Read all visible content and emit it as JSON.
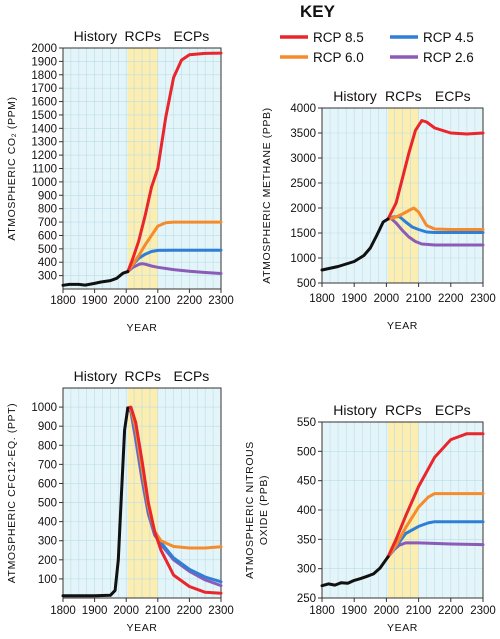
{
  "key": {
    "title": "KEY",
    "items": [
      {
        "label": "RCP 8.5",
        "color": "#e8262b"
      },
      {
        "label": "RCP 6.0",
        "color": "#f58b2a"
      },
      {
        "label": "RCP 4.5",
        "color": "#2f7fd6"
      },
      {
        "label": "RCP 2.6",
        "color": "#8b5bb8"
      }
    ]
  },
  "colors": {
    "history": "#111111",
    "panel_background": "#e4f5fa",
    "rcp_band": "#fbeeb0",
    "gridline": "#b9dde8"
  },
  "periods": [
    "History",
    "RCPs",
    "ECPs"
  ],
  "chart_data": [
    {
      "id": "co2",
      "type": "line",
      "ylabel": "ATMOSPHERIC CO₂ (PPM)",
      "xlabel": "YEAR",
      "xlim": [
        1800,
        2300
      ],
      "ylim": [
        200,
        2000
      ],
      "xticks": [
        1800,
        1900,
        2000,
        2100,
        2200,
        2300
      ],
      "yticks": [
        300,
        400,
        500,
        600,
        700,
        800,
        900,
        1000,
        1100,
        1200,
        1300,
        1400,
        1500,
        1600,
        1700,
        1800,
        1900,
        2000
      ],
      "rcp_period": [
        2005,
        2100
      ],
      "history": {
        "x": [
          1800,
          1820,
          1850,
          1870,
          1900,
          1920,
          1950,
          1970,
          1990,
          2005
        ],
        "y": [
          228,
          234,
          234,
          229,
          242,
          252,
          263,
          280,
          318,
          330
        ]
      },
      "series": [
        {
          "name": "RCP 8.5",
          "x": [
            2005,
            2020,
            2040,
            2060,
            2080,
            2100,
            2125,
            2150,
            2175,
            2200,
            2250,
            2300
          ],
          "y": [
            330,
            420,
            560,
            750,
            960,
            1100,
            1480,
            1780,
            1910,
            1950,
            1960,
            1962
          ]
        },
        {
          "name": "RCP 6.0",
          "x": [
            2005,
            2020,
            2040,
            2060,
            2080,
            2100,
            2125,
            2150,
            2200,
            2250,
            2300
          ],
          "y": [
            330,
            380,
            450,
            530,
            600,
            670,
            695,
            700,
            700,
            700,
            700
          ]
        },
        {
          "name": "RCP 4.5",
          "x": [
            2005,
            2020,
            2040,
            2060,
            2080,
            2100,
            2150,
            2200,
            2250,
            2300
          ],
          "y": [
            330,
            380,
            430,
            460,
            480,
            488,
            490,
            490,
            490,
            490
          ]
        },
        {
          "name": "RCP 2.6",
          "x": [
            2005,
            2020,
            2040,
            2050,
            2060,
            2080,
            2100,
            2150,
            2200,
            2250,
            2300
          ],
          "y": [
            330,
            360,
            384,
            389,
            385,
            372,
            362,
            345,
            333,
            323,
            316
          ]
        }
      ]
    },
    {
      "id": "methane",
      "type": "line",
      "ylabel": "ATMOSPHERIC METHANE (PPB)",
      "xlabel": "YEAR",
      "xlim": [
        1800,
        2300
      ],
      "ylim": [
        500,
        4000
      ],
      "xticks": [
        1800,
        1900,
        2000,
        2100,
        2200,
        2300
      ],
      "yticks": [
        500,
        1000,
        1500,
        2000,
        2500,
        3000,
        3500,
        4000
      ],
      "rcp_period": [
        2005,
        2100
      ],
      "history": {
        "x": [
          1800,
          1850,
          1900,
          1930,
          1950,
          1970,
          1990,
          2005
        ],
        "y": [
          760,
          830,
          930,
          1050,
          1200,
          1450,
          1720,
          1780
        ]
      },
      "series": [
        {
          "name": "RCP 8.5",
          "x": [
            2005,
            2030,
            2050,
            2070,
            2090,
            2110,
            2125,
            2150,
            2200,
            2250,
            2300
          ],
          "y": [
            1780,
            2100,
            2600,
            3100,
            3550,
            3750,
            3720,
            3600,
            3500,
            3480,
            3500
          ]
        },
        {
          "name": "RCP 6.0",
          "x": [
            2005,
            2030,
            2050,
            2070,
            2085,
            2100,
            2125,
            2150,
            2200,
            2300
          ],
          "y": [
            1780,
            1820,
            1880,
            1950,
            2000,
            1920,
            1650,
            1580,
            1570,
            1570
          ]
        },
        {
          "name": "RCP 4.5",
          "x": [
            2005,
            2020,
            2040,
            2060,
            2080,
            2100,
            2125,
            2150,
            2200,
            2300
          ],
          "y": [
            1780,
            1820,
            1830,
            1720,
            1620,
            1570,
            1520,
            1510,
            1510,
            1510
          ]
        },
        {
          "name": "RCP 2.6",
          "x": [
            2005,
            2015,
            2030,
            2050,
            2070,
            2090,
            2110,
            2150,
            2200,
            2300
          ],
          "y": [
            1780,
            1790,
            1700,
            1550,
            1420,
            1330,
            1280,
            1260,
            1260,
            1260
          ]
        }
      ]
    },
    {
      "id": "cfc12",
      "type": "line",
      "ylabel": "ATMOSPHERIC CFC12-EQ. (PPT)",
      "xlabel": "YEAR",
      "xlim": [
        1800,
        2300
      ],
      "ylim": [
        0,
        1100
      ],
      "xticks": [
        1800,
        1900,
        2000,
        2100,
        2200,
        2300
      ],
      "yticks": [
        100,
        200,
        300,
        400,
        500,
        600,
        700,
        800,
        900,
        1000
      ],
      "rcp_period": [
        2005,
        2100
      ],
      "history": {
        "x": [
          1800,
          1900,
          1950,
          1965,
          1975,
          1985,
          1995,
          2005
        ],
        "y": [
          12,
          12,
          14,
          40,
          200,
          550,
          880,
          995
        ]
      },
      "series": [
        {
          "name": "RCP 8.5",
          "x": [
            2005,
            2015,
            2030,
            2050,
            2070,
            2090,
            2110,
            2150,
            2200,
            2250,
            2300
          ],
          "y": [
            995,
            1000,
            920,
            720,
            500,
            350,
            250,
            120,
            60,
            30,
            25
          ]
        },
        {
          "name": "RCP 6.0",
          "x": [
            2005,
            2015,
            2030,
            2050,
            2070,
            2090,
            2110,
            2150,
            2200,
            2250,
            2300
          ],
          "y": [
            995,
            990,
            890,
            680,
            480,
            350,
            300,
            270,
            262,
            262,
            268
          ]
        },
        {
          "name": "RCP 4.5",
          "x": [
            2005,
            2015,
            2030,
            2050,
            2070,
            2090,
            2110,
            2150,
            2200,
            2250,
            2300
          ],
          "y": [
            995,
            985,
            860,
            650,
            460,
            340,
            290,
            210,
            150,
            110,
            85
          ]
        },
        {
          "name": "RCP 2.6",
          "x": [
            2005,
            2015,
            2030,
            2050,
            2070,
            2090,
            2110,
            2150,
            2200,
            2250,
            2300
          ],
          "y": [
            995,
            975,
            830,
            620,
            440,
            330,
            280,
            200,
            140,
            95,
            65
          ]
        }
      ]
    },
    {
      "id": "n2o",
      "type": "line",
      "ylabel": "ATMOSPHERIC NITROUS OXIDE (PPB)",
      "xlabel": "YEAR",
      "xlim": [
        1800,
        2300
      ],
      "ylim": [
        250,
        550
      ],
      "xticks": [
        1800,
        1900,
        2000,
        2100,
        2200,
        2300
      ],
      "yticks": [
        250,
        300,
        350,
        400,
        450,
        500,
        550
      ],
      "rcp_period": [
        2005,
        2100
      ],
      "history": {
        "x": [
          1800,
          1820,
          1840,
          1860,
          1880,
          1900,
          1920,
          1940,
          1960,
          1980,
          2005
        ],
        "y": [
          271,
          274,
          272,
          276,
          275,
          280,
          283,
          287,
          291,
          301,
          320
        ]
      },
      "series": [
        {
          "name": "RCP 8.5",
          "x": [
            2005,
            2030,
            2060,
            2100,
            2150,
            2200,
            2250,
            2300
          ],
          "y": [
            320,
            350,
            390,
            440,
            490,
            520,
            530,
            530
          ]
        },
        {
          "name": "RCP 6.0",
          "x": [
            2005,
            2030,
            2060,
            2100,
            2130,
            2150,
            2200,
            2300
          ],
          "y": [
            320,
            340,
            370,
            405,
            422,
            428,
            428,
            428
          ]
        },
        {
          "name": "RCP 4.5",
          "x": [
            2005,
            2030,
            2060,
            2100,
            2130,
            2150,
            2200,
            2300
          ],
          "y": [
            320,
            338,
            360,
            372,
            378,
            380,
            380,
            380
          ]
        },
        {
          "name": "RCP 2.6",
          "x": [
            2005,
            2025,
            2040,
            2060,
            2100,
            2200,
            2300
          ],
          "y": [
            320,
            333,
            340,
            344,
            344,
            342,
            341
          ]
        }
      ]
    }
  ]
}
